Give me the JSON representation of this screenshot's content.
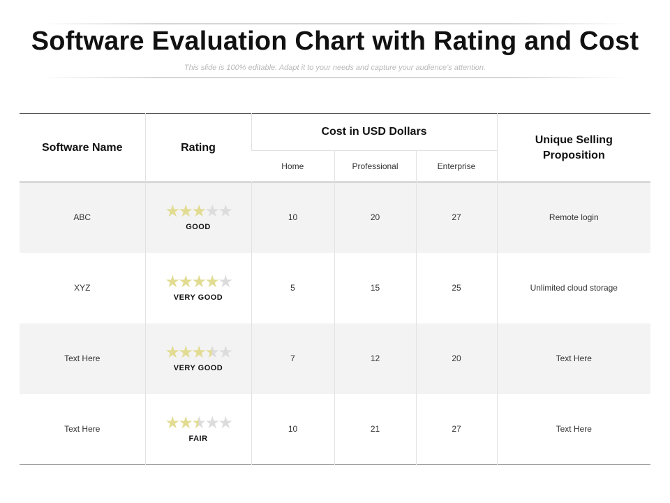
{
  "title": "Software Evaluation Chart with Rating and Cost",
  "subtitle": "This slide is 100% editable. Adapt it to your needs and capture your audience's attention.",
  "table": {
    "headers": {
      "software_name": "Software Name",
      "rating": "Rating",
      "cost": "Cost in USD Dollars",
      "usp": "Unique Selling Proposition",
      "home": "Home",
      "professional": "Professional",
      "enterprise": "Enterprise"
    },
    "rows": [
      {
        "name": "ABC",
        "stars": 3,
        "rating_label": "GOOD",
        "home": "10",
        "professional": "20",
        "enterprise": "27",
        "usp": "Remote login"
      },
      {
        "name": "XYZ",
        "stars": 4,
        "rating_label": "VERY GOOD",
        "home": "5",
        "professional": "15",
        "enterprise": "25",
        "usp": "Unlimited cloud storage"
      },
      {
        "name": "Text Here",
        "stars": 3.5,
        "rating_label": "VERY GOOD",
        "home": "7",
        "professional": "12",
        "enterprise": "20",
        "usp": "Text Here"
      },
      {
        "name": "Text Here",
        "stars": 2.5,
        "rating_label": "FAIR",
        "home": "10",
        "professional": "21",
        "enterprise": "27",
        "usp": "Text Here"
      }
    ],
    "max_stars": 5
  },
  "colors": {
    "star_filled": "#e2dc93",
    "star_empty": "#dcdcdc",
    "row_shade": "#f3f3f3"
  }
}
